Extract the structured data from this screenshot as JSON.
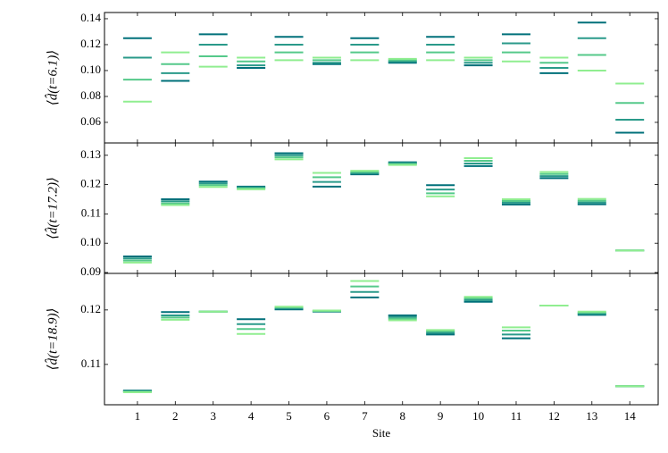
{
  "chart_data": [
    {
      "type": "dash",
      "ylabel": "⟨d̂(t=6.1)⟩",
      "x": [
        1,
        2,
        3,
        4,
        5,
        6,
        7,
        8,
        9,
        10,
        11,
        12,
        13,
        14
      ],
      "xlim": [
        0.13,
        14.75
      ],
      "ylim": [
        0.0441,
        0.1448
      ],
      "yticks": [
        0.06,
        0.08,
        {
          "value": 0.1,
          "label": "0.10"
        },
        0.12,
        0.14
      ],
      "series": [
        {
          "color": "#00707a",
          "values": [
            0.125,
            0.092,
            0.128,
            0.102,
            0.126,
            0.105,
            0.125,
            0.106,
            0.126,
            0.104,
            0.128,
            0.098,
            0.137,
            0.052
          ]
        },
        {
          "color": "#2a9a8a",
          "values": [
            0.11,
            0.098,
            0.12,
            0.104,
            0.12,
            0.106,
            0.12,
            0.107,
            0.12,
            0.106,
            0.121,
            0.102,
            0.125,
            0.062
          ]
        },
        {
          "color": "#55c98a",
          "values": [
            0.093,
            0.105,
            0.111,
            0.107,
            0.114,
            0.108,
            0.114,
            0.108,
            0.114,
            0.108,
            0.114,
            0.106,
            0.112,
            0.075
          ]
        },
        {
          "color": "#90ee90",
          "values": [
            0.076,
            0.114,
            0.103,
            0.11,
            0.108,
            0.11,
            0.108,
            0.109,
            0.108,
            0.11,
            0.107,
            0.11,
            0.1,
            0.09
          ]
        }
      ]
    },
    {
      "type": "dash",
      "ylabel": "⟨d̂(t=17.2)⟩",
      "x": [
        1,
        2,
        3,
        4,
        5,
        6,
        7,
        8,
        9,
        10,
        11,
        12,
        13,
        14
      ],
      "xlim": [
        0.13,
        14.75
      ],
      "ylim": [
        0.0897,
        0.1342
      ],
      "yticks": [
        0.09,
        {
          "value": 0.1,
          "label": "0.10"
        },
        0.11,
        0.12,
        0.13
      ],
      "series": [
        {
          "color": "#00707a",
          "values": [
            0.0955,
            0.115,
            0.121,
            0.1193,
            0.1307,
            0.1193,
            0.1235,
            0.1276,
            0.1198,
            0.1263,
            0.1132,
            0.1222,
            0.1133,
            0.0975
          ]
        },
        {
          "color": "#2a9a8a",
          "values": [
            0.0948,
            0.1143,
            0.1204,
            0.119,
            0.13,
            0.1209,
            0.1239,
            0.1273,
            0.1183,
            0.1272,
            0.1138,
            0.1229,
            0.1139,
            0.0975
          ]
        },
        {
          "color": "#55c98a",
          "values": [
            0.0941,
            0.1136,
            0.1198,
            0.1187,
            0.1293,
            0.1225,
            0.1243,
            0.127,
            0.117,
            0.1281,
            0.1144,
            0.1236,
            0.1145,
            0.0975
          ]
        },
        {
          "color": "#90ee90",
          "values": [
            0.0934,
            0.113,
            0.1192,
            0.1184,
            0.1286,
            0.124,
            0.1247,
            0.1267,
            0.116,
            0.129,
            0.115,
            0.1243,
            0.1151,
            0.0975
          ]
        }
      ]
    },
    {
      "type": "dash",
      "ylabel": "⟨d̂(t=18.9)⟩",
      "xlabel": "Site",
      "x": [
        1,
        2,
        3,
        4,
        5,
        6,
        7,
        8,
        9,
        10,
        11,
        12,
        13,
        14
      ],
      "xlim": [
        0.13,
        14.75
      ],
      "xticks": [
        1,
        2,
        3,
        4,
        5,
        6,
        7,
        8,
        9,
        10,
        11,
        12,
        13,
        14
      ],
      "ylim": [
        0.1026,
        0.1267
      ],
      "yticks": [
        0.11,
        0.12
      ],
      "series": [
        {
          "color": "#00707a",
          "values": [
            0.1052,
            0.1196,
            0.1197,
            0.1183,
            0.1201,
            0.1197,
            0.1223,
            0.119,
            0.1155,
            0.1215,
            0.1148,
            0.1208,
            0.1191,
            0.106
          ]
        },
        {
          "color": "#2a9a8a",
          "values": [
            0.1051,
            0.119,
            0.1197,
            0.1174,
            0.1203,
            0.1198,
            0.1233,
            0.1187,
            0.1158,
            0.1218,
            0.1155,
            0.1208,
            0.1193,
            0.106
          ]
        },
        {
          "color": "#55c98a",
          "values": [
            0.105,
            0.1186,
            0.1197,
            0.1165,
            0.1205,
            0.1198,
            0.1243,
            0.1184,
            0.1161,
            0.1221,
            0.1162,
            0.1208,
            0.1195,
            0.106
          ]
        },
        {
          "color": "#90ee90",
          "values": [
            0.1049,
            0.1182,
            0.1197,
            0.1156,
            0.1206,
            0.1199,
            0.1253,
            0.1181,
            0.1163,
            0.1224,
            0.1168,
            0.1208,
            0.1197,
            0.106
          ]
        }
      ]
    }
  ]
}
